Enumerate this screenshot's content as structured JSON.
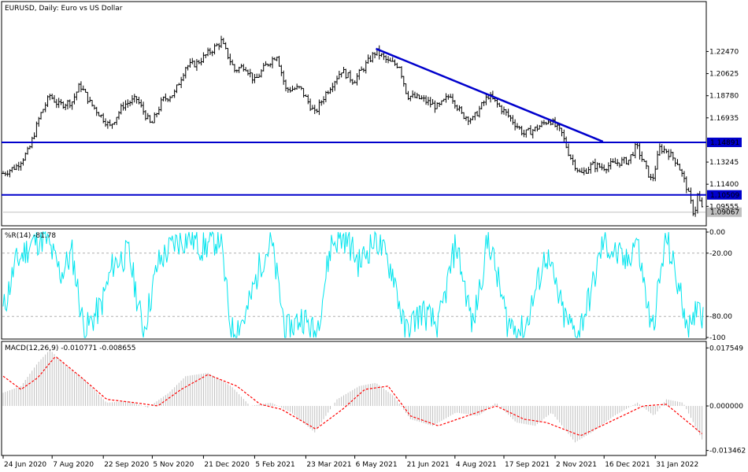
{
  "chart_data": [
    {
      "type": "ohlc",
      "title": "EURUSD, Daily:  Euro vs US Dollar",
      "symbol": "EURUSD",
      "timeframe": "Daily",
      "description": "Euro vs US Dollar",
      "ylim": [
        1.08,
        1.265
      ],
      "yticks": [
        {
          "value": 1.2247,
          "label": "1.22470"
        },
        {
          "value": 1.20625,
          "label": "1.20625"
        },
        {
          "value": 1.1878,
          "label": "1.18780"
        },
        {
          "value": 1.16935,
          "label": "1.16935"
        },
        {
          "value": 1.13245,
          "label": "1.13245"
        },
        {
          "value": 1.114,
          "label": "1.11400"
        },
        {
          "value": 1.09555,
          "label": "1.09555"
        }
      ],
      "horizontal_lines": [
        {
          "value": 1.14891,
          "label": "1.14891",
          "color": "#0000cc"
        },
        {
          "value": 1.10509,
          "label": "1.10509",
          "color": "#0000cc"
        }
      ],
      "current_price": {
        "value": 1.09067,
        "label": "1.09067"
      },
      "trendline": {
        "start": {
          "date": "2021-05-25",
          "value": 1.227
        },
        "end": {
          "date": "2021-12-15",
          "value": 1.1495
        },
        "color": "#0000cc"
      },
      "price_path": [
        {
          "date": "2020-06-24",
          "value": 1.123
        },
        {
          "date": "2020-07-06",
          "value": 1.129
        },
        {
          "date": "2020-07-17",
          "value": 1.142
        },
        {
          "date": "2020-07-27",
          "value": 1.171
        },
        {
          "date": "2020-08-05",
          "value": 1.188
        },
        {
          "date": "2020-08-13",
          "value": 1.18
        },
        {
          "date": "2020-08-25",
          "value": 1.183
        },
        {
          "date": "2020-09-01",
          "value": 1.197
        },
        {
          "date": "2020-09-10",
          "value": 1.182
        },
        {
          "date": "2020-09-28",
          "value": 1.162
        },
        {
          "date": "2020-10-10",
          "value": 1.18
        },
        {
          "date": "2020-10-22",
          "value": 1.185
        },
        {
          "date": "2020-11-04",
          "value": 1.163
        },
        {
          "date": "2020-11-14",
          "value": 1.184
        },
        {
          "date": "2020-11-25",
          "value": 1.19
        },
        {
          "date": "2020-12-05",
          "value": 1.212
        },
        {
          "date": "2020-12-15",
          "value": 1.215
        },
        {
          "date": "2020-12-25",
          "value": 1.223
        },
        {
          "date": "2021-01-06",
          "value": 1.233
        },
        {
          "date": "2021-01-18",
          "value": 1.209
        },
        {
          "date": "2021-01-27",
          "value": 1.213
        },
        {
          "date": "2021-02-05",
          "value": 1.2
        },
        {
          "date": "2021-02-15",
          "value": 1.213
        },
        {
          "date": "2021-02-25",
          "value": 1.222
        },
        {
          "date": "2021-03-05",
          "value": 1.193
        },
        {
          "date": "2021-03-18",
          "value": 1.194
        },
        {
          "date": "2021-03-31",
          "value": 1.173
        },
        {
          "date": "2021-04-10",
          "value": 1.19
        },
        {
          "date": "2021-04-24",
          "value": 1.209
        },
        {
          "date": "2021-05-05",
          "value": 1.2
        },
        {
          "date": "2021-05-25",
          "value": 1.225
        },
        {
          "date": "2021-06-05",
          "value": 1.216
        },
        {
          "date": "2021-06-15",
          "value": 1.213
        },
        {
          "date": "2021-06-22",
          "value": 1.188
        },
        {
          "date": "2021-07-05",
          "value": 1.185
        },
        {
          "date": "2021-07-20",
          "value": 1.178
        },
        {
          "date": "2021-07-31",
          "value": 1.189
        },
        {
          "date": "2021-08-10",
          "value": 1.172
        },
        {
          "date": "2021-08-20",
          "value": 1.168
        },
        {
          "date": "2021-09-03",
          "value": 1.188
        },
        {
          "date": "2021-09-20",
          "value": 1.172
        },
        {
          "date": "2021-10-05",
          "value": 1.156
        },
        {
          "date": "2021-10-15",
          "value": 1.16
        },
        {
          "date": "2021-10-28",
          "value": 1.168
        },
        {
          "date": "2021-11-08",
          "value": 1.156
        },
        {
          "date": "2021-11-15",
          "value": 1.138
        },
        {
          "date": "2021-11-25",
          "value": 1.122
        },
        {
          "date": "2021-12-05",
          "value": 1.13
        },
        {
          "date": "2021-12-15",
          "value": 1.128
        },
        {
          "date": "2021-12-28",
          "value": 1.132
        },
        {
          "date": "2022-01-07",
          "value": 1.134
        },
        {
          "date": "2022-01-14",
          "value": 1.146
        },
        {
          "date": "2022-01-20",
          "value": 1.133
        },
        {
          "date": "2022-01-28",
          "value": 1.116
        },
        {
          "date": "2022-02-04",
          "value": 1.144
        },
        {
          "date": "2022-02-10",
          "value": 1.142
        },
        {
          "date": "2022-02-20",
          "value": 1.132
        },
        {
          "date": "2022-02-28",
          "value": 1.112
        },
        {
          "date": "2022-03-07",
          "value": 1.088
        },
        {
          "date": "2022-03-10",
          "value": 1.105
        },
        {
          "date": "2022-03-15",
          "value": 1.0907
        }
      ]
    },
    {
      "type": "line",
      "title": "%R(14) -81.78",
      "ylim": [
        -100,
        0
      ],
      "yticks": [
        {
          "value": 0,
          "label": "0.00"
        },
        {
          "value": -20,
          "label": "-20.00"
        },
        {
          "value": -80,
          "label": "-80.00"
        },
        {
          "value": -100,
          "label": "-100"
        }
      ],
      "levels": [
        -20,
        -80
      ],
      "color": "#00e5ee",
      "series": [
        {
          "date": "2020-06-24",
          "value": -75
        },
        {
          "date": "2020-07-05",
          "value": -30
        },
        {
          "date": "2020-07-20",
          "value": -10
        },
        {
          "date": "2020-08-01",
          "value": -5
        },
        {
          "date": "2020-08-15",
          "value": -40
        },
        {
          "date": "2020-08-25",
          "value": -20
        },
        {
          "date": "2020-09-05",
          "value": -95
        },
        {
          "date": "2020-09-20",
          "value": -70
        },
        {
          "date": "2020-10-01",
          "value": -30
        },
        {
          "date": "2020-10-15",
          "value": -20
        },
        {
          "date": "2020-10-28",
          "value": -95
        },
        {
          "date": "2020-11-10",
          "value": -30
        },
        {
          "date": "2020-11-25",
          "value": -10
        },
        {
          "date": "2020-12-10",
          "value": -5
        },
        {
          "date": "2020-12-20",
          "value": -15
        },
        {
          "date": "2021-01-05",
          "value": -5
        },
        {
          "date": "2021-01-15",
          "value": -95
        },
        {
          "date": "2021-01-28",
          "value": -80
        },
        {
          "date": "2021-02-10",
          "value": -30
        },
        {
          "date": "2021-02-20",
          "value": -10
        },
        {
          "date": "2021-03-05",
          "value": -95
        },
        {
          "date": "2021-03-20",
          "value": -80
        },
        {
          "date": "2021-04-01",
          "value": -98
        },
        {
          "date": "2021-04-15",
          "value": -10
        },
        {
          "date": "2021-04-28",
          "value": -5
        },
        {
          "date": "2021-05-10",
          "value": -30
        },
        {
          "date": "2021-05-25",
          "value": -5
        },
        {
          "date": "2021-06-10",
          "value": -40
        },
        {
          "date": "2021-06-20",
          "value": -95
        },
        {
          "date": "2021-07-05",
          "value": -75
        },
        {
          "date": "2021-07-20",
          "value": -90
        },
        {
          "date": "2021-08-05",
          "value": -10
        },
        {
          "date": "2021-08-20",
          "value": -90
        },
        {
          "date": "2021-09-03",
          "value": -5
        },
        {
          "date": "2021-09-20",
          "value": -85
        },
        {
          "date": "2021-10-05",
          "value": -95
        },
        {
          "date": "2021-10-25",
          "value": -20
        },
        {
          "date": "2021-11-10",
          "value": -80
        },
        {
          "date": "2021-11-22",
          "value": -98
        },
        {
          "date": "2021-12-05",
          "value": -55
        },
        {
          "date": "2021-12-15",
          "value": -10
        },
        {
          "date": "2022-01-05",
          "value": -30
        },
        {
          "date": "2022-01-14",
          "value": -5
        },
        {
          "date": "2022-01-28",
          "value": -95
        },
        {
          "date": "2022-02-10",
          "value": -5
        },
        {
          "date": "2022-02-25",
          "value": -70
        },
        {
          "date": "2022-03-05",
          "value": -98
        },
        {
          "date": "2022-03-10",
          "value": -60
        },
        {
          "date": "2022-03-15",
          "value": -81.78
        }
      ]
    },
    {
      "type": "bar+line",
      "title": "MACD(12,26,9) -0.010771 -0.008655",
      "ylim": [
        -0.0145,
        0.0188
      ],
      "yticks": [
        {
          "value": 0.017549,
          "label": "0.017549"
        },
        {
          "value": 0.0,
          "label": "0.000000"
        },
        {
          "value": -0.013462,
          "label": "-0.013462"
        }
      ],
      "histogram_color": "#c0c0c0",
      "signal_color": "#ff0000",
      "macd": [
        {
          "date": "2020-06-24",
          "value": 0.004
        },
        {
          "date": "2020-07-10",
          "value": 0.006
        },
        {
          "date": "2020-07-25",
          "value": 0.013
        },
        {
          "date": "2020-08-05",
          "value": 0.017
        },
        {
          "date": "2020-08-20",
          "value": 0.012
        },
        {
          "date": "2020-09-05",
          "value": 0.008
        },
        {
          "date": "2020-09-25",
          "value": 0.001
        },
        {
          "date": "2020-10-15",
          "value": 0.0015
        },
        {
          "date": "2020-11-01",
          "value": -0.0005
        },
        {
          "date": "2020-11-20",
          "value": 0.004
        },
        {
          "date": "2020-12-05",
          "value": 0.009
        },
        {
          "date": "2020-12-25",
          "value": 0.01
        },
        {
          "date": "2021-01-15",
          "value": 0.006
        },
        {
          "date": "2021-02-01",
          "value": 0.0
        },
        {
          "date": "2021-02-20",
          "value": 0.001
        },
        {
          "date": "2021-03-10",
          "value": -0.002
        },
        {
          "date": "2021-03-31",
          "value": -0.008
        },
        {
          "date": "2021-04-20",
          "value": 0.002
        },
        {
          "date": "2021-05-10",
          "value": 0.006
        },
        {
          "date": "2021-05-25",
          "value": 0.007
        },
        {
          "date": "2021-06-10",
          "value": 0.003
        },
        {
          "date": "2021-06-25",
          "value": -0.004
        },
        {
          "date": "2021-07-15",
          "value": -0.006
        },
        {
          "date": "2021-08-05",
          "value": -0.002
        },
        {
          "date": "2021-08-25",
          "value": -0.003
        },
        {
          "date": "2021-09-10",
          "value": 0.001
        },
        {
          "date": "2021-09-28",
          "value": -0.005
        },
        {
          "date": "2021-10-15",
          "value": -0.006
        },
        {
          "date": "2021-10-30",
          "value": -0.002
        },
        {
          "date": "2021-11-20",
          "value": -0.011
        },
        {
          "date": "2021-12-05",
          "value": -0.008
        },
        {
          "date": "2021-12-25",
          "value": -0.003
        },
        {
          "date": "2022-01-15",
          "value": 0.001
        },
        {
          "date": "2022-01-30",
          "value": -0.003
        },
        {
          "date": "2022-02-10",
          "value": 0.002
        },
        {
          "date": "2022-02-25",
          "value": 0.001
        },
        {
          "date": "2022-03-15",
          "value": -0.0108
        }
      ],
      "signal": [
        {
          "date": "2020-06-24",
          "value": 0.009
        },
        {
          "date": "2020-07-10",
          "value": 0.005
        },
        {
          "date": "2020-07-25",
          "value": 0.0085
        },
        {
          "date": "2020-08-10",
          "value": 0.015
        },
        {
          "date": "2020-09-01",
          "value": 0.009
        },
        {
          "date": "2020-09-25",
          "value": 0.002
        },
        {
          "date": "2020-10-20",
          "value": 0.001
        },
        {
          "date": "2020-11-10",
          "value": 0.0
        },
        {
          "date": "2020-12-01",
          "value": 0.005
        },
        {
          "date": "2020-12-25",
          "value": 0.0095
        },
        {
          "date": "2021-01-20",
          "value": 0.006
        },
        {
          "date": "2021-02-10",
          "value": 0.0005
        },
        {
          "date": "2021-03-01",
          "value": -0.001
        },
        {
          "date": "2021-04-01",
          "value": -0.007
        },
        {
          "date": "2021-04-25",
          "value": -0.001
        },
        {
          "date": "2021-05-15",
          "value": 0.005
        },
        {
          "date": "2021-06-05",
          "value": 0.006
        },
        {
          "date": "2021-06-25",
          "value": -0.003
        },
        {
          "date": "2021-07-20",
          "value": -0.006
        },
        {
          "date": "2021-08-15",
          "value": -0.003
        },
        {
          "date": "2021-09-10",
          "value": 0.0
        },
        {
          "date": "2021-10-05",
          "value": -0.004
        },
        {
          "date": "2021-10-25",
          "value": -0.005
        },
        {
          "date": "2021-11-25",
          "value": -0.009
        },
        {
          "date": "2021-12-20",
          "value": -0.005
        },
        {
          "date": "2022-01-20",
          "value": 0.0
        },
        {
          "date": "2022-02-10",
          "value": 0.0005
        },
        {
          "date": "2022-03-15",
          "value": -0.0087
        }
      ]
    }
  ],
  "x_axis": {
    "start": "2020-06-24",
    "end": "2022-03-15",
    "ticks": [
      {
        "date": "2020-06-24",
        "label": "24 Jun 2020"
      },
      {
        "date": "2020-08-07",
        "label": "7 Aug 2020"
      },
      {
        "date": "2020-09-22",
        "label": "22 Sep 2020"
      },
      {
        "date": "2020-11-05",
        "label": "5 Nov 2020"
      },
      {
        "date": "2020-12-21",
        "label": "21 Dec 2020"
      },
      {
        "date": "2021-02-05",
        "label": "5 Feb 2021"
      },
      {
        "date": "2021-03-23",
        "label": "23 Mar 2021"
      },
      {
        "date": "2021-05-06",
        "label": "6 May 2021"
      },
      {
        "date": "2021-06-21",
        "label": "21 Jun 2021"
      },
      {
        "date": "2021-08-04",
        "label": "4 Aug 2021"
      },
      {
        "date": "2021-09-17",
        "label": "17 Sep 2021"
      },
      {
        "date": "2021-11-02",
        "label": "2 Nov 2021"
      },
      {
        "date": "2021-12-16",
        "label": "16 Dec 2021"
      },
      {
        "date": "2022-01-31",
        "label": "31 Jan 2022"
      }
    ]
  }
}
